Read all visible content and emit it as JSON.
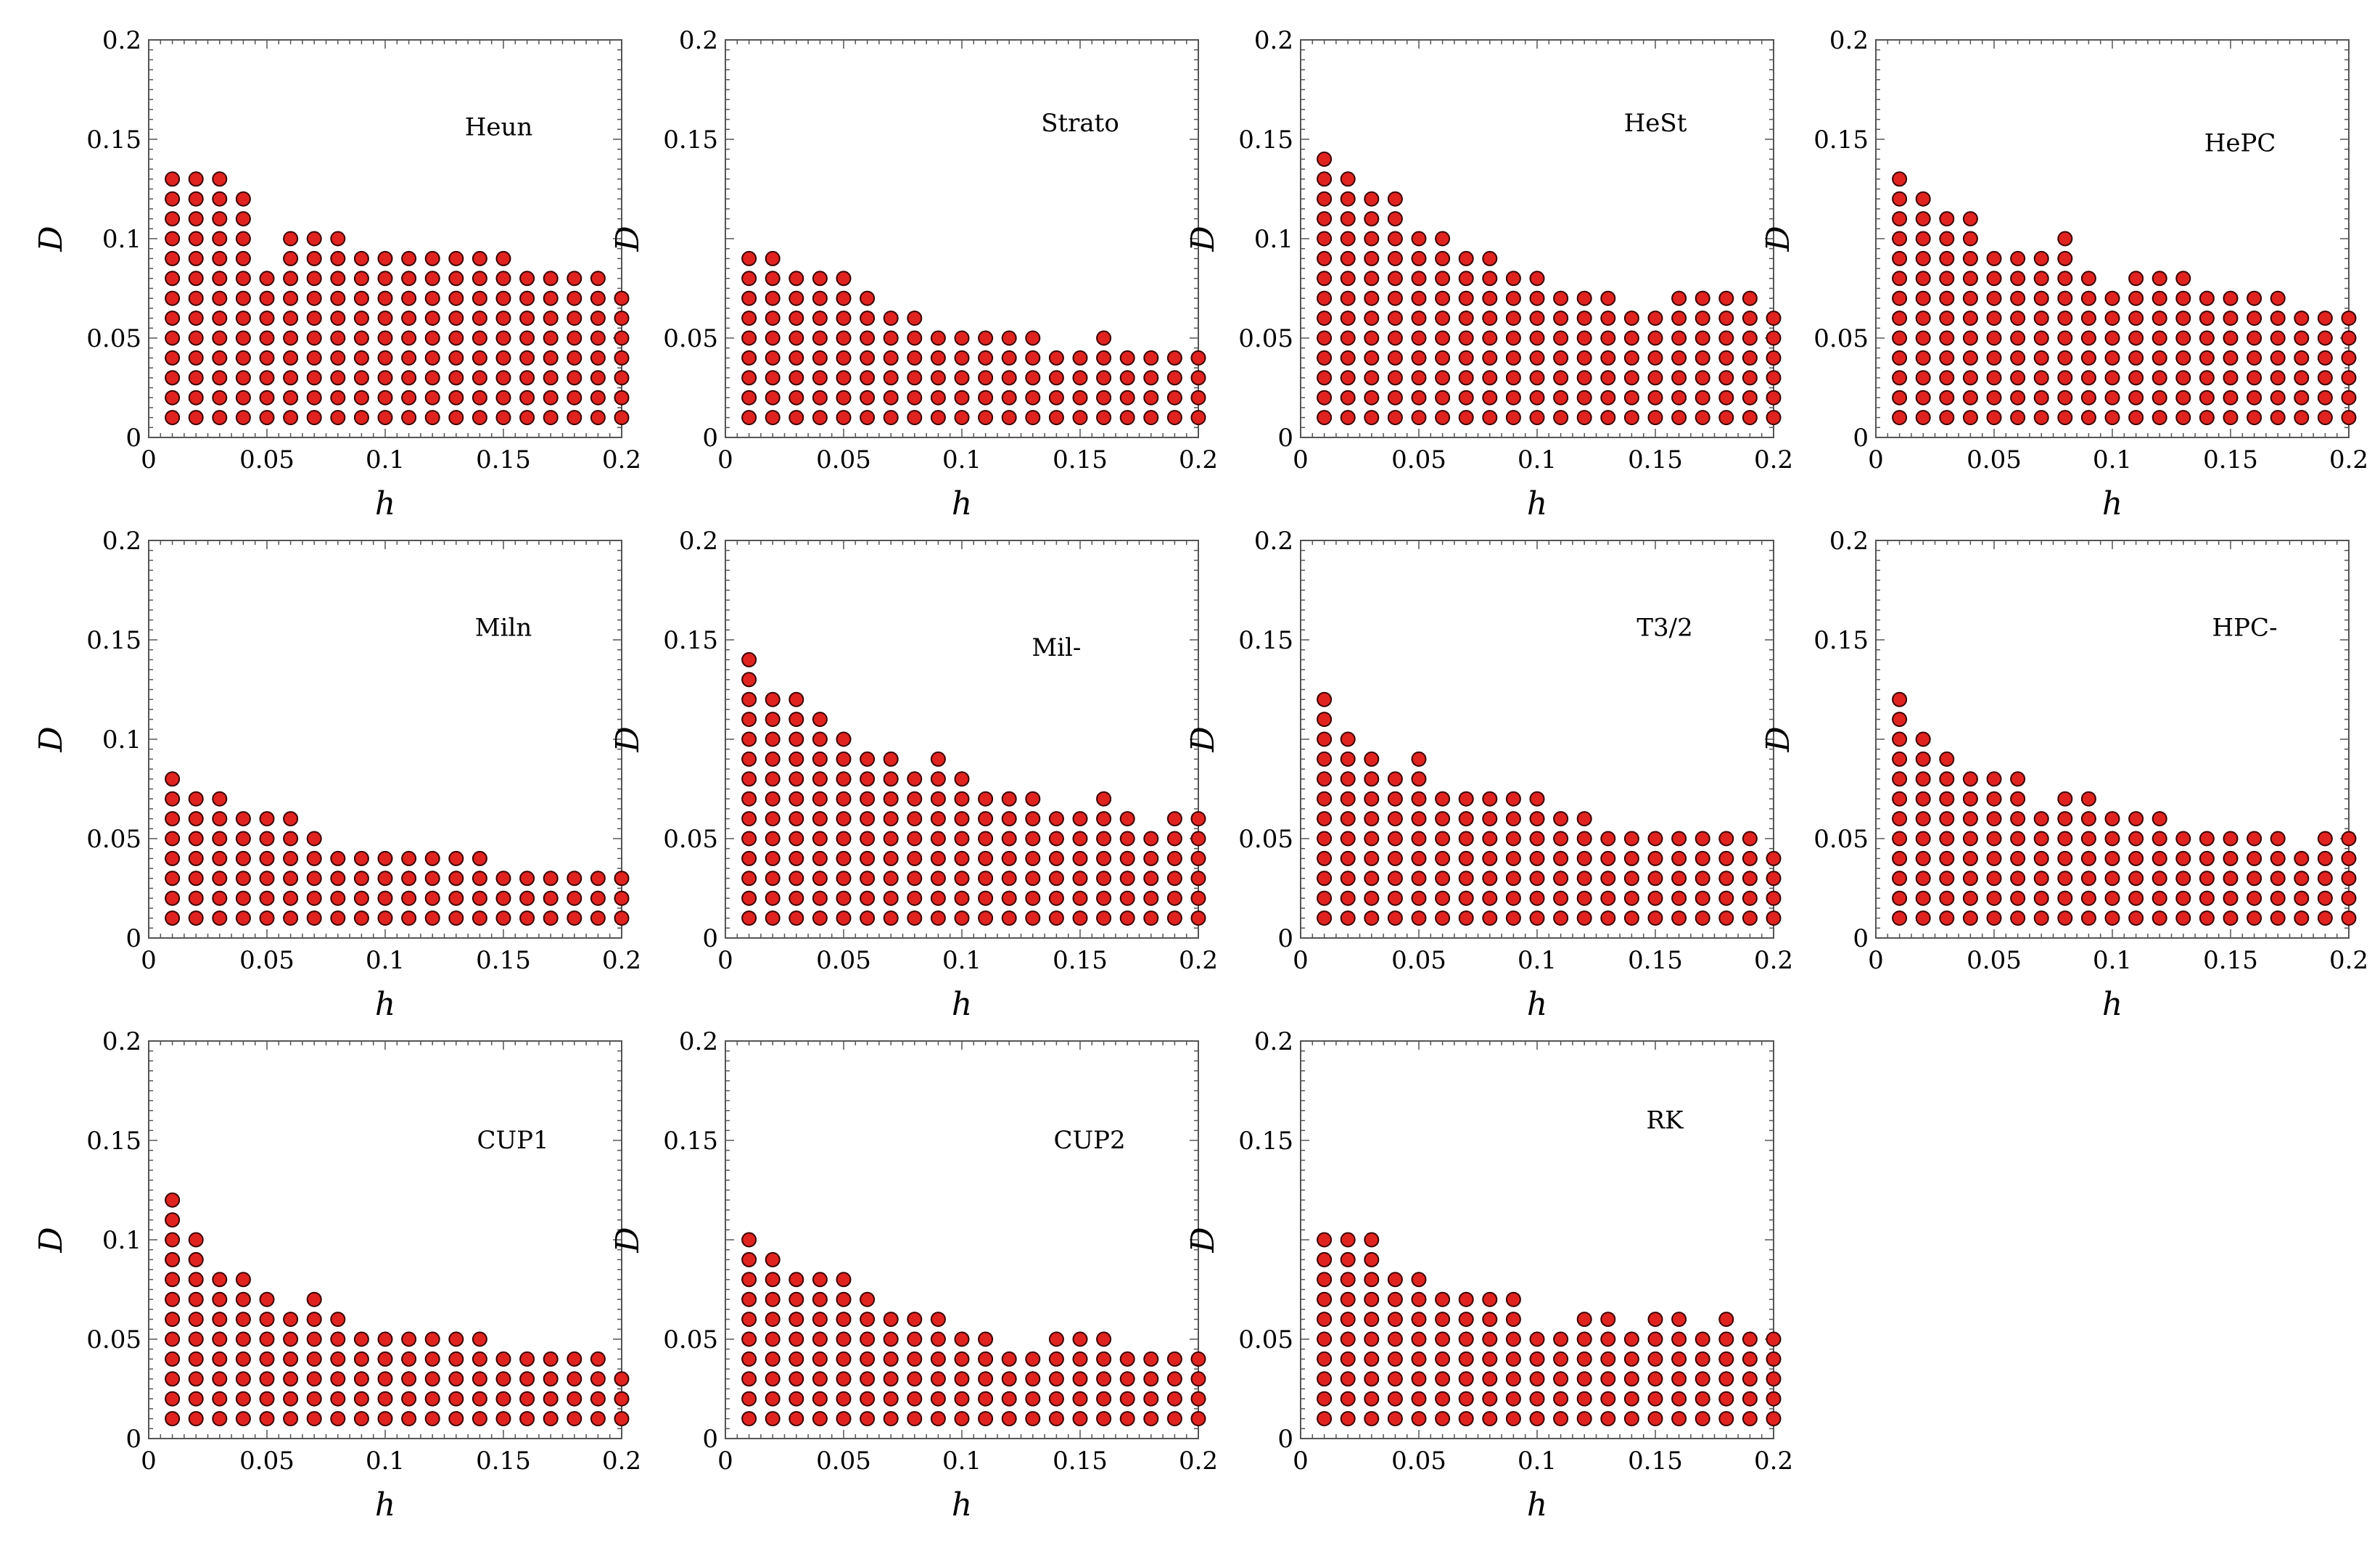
{
  "figure": {
    "style": {
      "marker_fill": "#e0231f",
      "marker_edge": "#3a0000",
      "axis_color": "#555555",
      "background": "#ffffff"
    },
    "xlabel": "h",
    "ylabel": "D",
    "x_ticks": [
      0,
      0.05,
      0.1,
      0.15,
      0.2
    ],
    "x_tick_labels": [
      "0",
      "0.05",
      "0.1",
      "0.15",
      "0.2"
    ],
    "y_ticks_full": [
      0,
      0.05,
      0.1,
      0.15,
      0.2
    ],
    "y_tick_labels_full": [
      "0",
      "0.05",
      "0.1",
      "0.15",
      "0.2"
    ],
    "y_ticks_no01": [
      0,
      0.05,
      0.15,
      0.2
    ],
    "y_tick_labels_no01": [
      "0",
      "0.05",
      "0.15",
      "0.2"
    ]
  },
  "chart_data": [
    {
      "type": "scatter",
      "title": "Heun",
      "xlabel": "h",
      "ylabel": "D",
      "xlim": [
        0,
        0.2
      ],
      "ylim": [
        0,
        0.2
      ],
      "x": [
        0.01,
        0.02,
        0.03,
        0.04,
        0.05,
        0.06,
        0.07,
        0.08,
        0.09,
        0.1,
        0.11,
        0.12,
        0.13,
        0.14,
        0.15,
        0.16,
        0.17,
        0.18,
        0.19,
        0.2
      ],
      "max_D": [
        0.13,
        0.13,
        0.13,
        0.12,
        0.08,
        0.1,
        0.1,
        0.1,
        0.09,
        0.09,
        0.09,
        0.09,
        0.09,
        0.09,
        0.09,
        0.08,
        0.08,
        0.08,
        0.08,
        0.07
      ],
      "D_step": 0.01,
      "y_ticks": [
        0,
        0.05,
        0.1,
        0.15,
        0.2
      ]
    },
    {
      "type": "scatter",
      "title": "Strato",
      "xlabel": "h",
      "ylabel": "D",
      "xlim": [
        0,
        0.2
      ],
      "ylim": [
        0,
        0.2
      ],
      "x": [
        0.01,
        0.02,
        0.03,
        0.04,
        0.05,
        0.06,
        0.07,
        0.08,
        0.09,
        0.1,
        0.11,
        0.12,
        0.13,
        0.14,
        0.15,
        0.16,
        0.17,
        0.18,
        0.19,
        0.2
      ],
      "max_D": [
        0.09,
        0.09,
        0.08,
        0.08,
        0.08,
        0.07,
        0.06,
        0.06,
        0.05,
        0.05,
        0.05,
        0.05,
        0.05,
        0.04,
        0.04,
        0.05,
        0.04,
        0.04,
        0.04,
        0.04
      ],
      "D_step": 0.01,
      "y_ticks": [
        0,
        0.05,
        0.15,
        0.2
      ]
    },
    {
      "type": "scatter",
      "title": "HeSt",
      "xlabel": "h",
      "ylabel": "D",
      "xlim": [
        0,
        0.2
      ],
      "ylim": [
        0,
        0.2
      ],
      "x": [
        0.01,
        0.02,
        0.03,
        0.04,
        0.05,
        0.06,
        0.07,
        0.08,
        0.09,
        0.1,
        0.11,
        0.12,
        0.13,
        0.14,
        0.15,
        0.16,
        0.17,
        0.18,
        0.19,
        0.2
      ],
      "max_D": [
        0.14,
        0.13,
        0.12,
        0.12,
        0.1,
        0.1,
        0.09,
        0.09,
        0.08,
        0.08,
        0.07,
        0.07,
        0.07,
        0.06,
        0.06,
        0.07,
        0.07,
        0.07,
        0.07,
        0.06
      ],
      "D_step": 0.01,
      "y_ticks": [
        0,
        0.05,
        0.1,
        0.15,
        0.2
      ]
    },
    {
      "type": "scatter",
      "title": "HePC",
      "xlabel": "h",
      "ylabel": "D",
      "xlim": [
        0,
        0.2
      ],
      "ylim": [
        0,
        0.2
      ],
      "x": [
        0.01,
        0.02,
        0.03,
        0.04,
        0.05,
        0.06,
        0.07,
        0.08,
        0.09,
        0.1,
        0.11,
        0.12,
        0.13,
        0.14,
        0.15,
        0.16,
        0.17,
        0.18,
        0.19,
        0.2
      ],
      "max_D": [
        0.13,
        0.12,
        0.11,
        0.11,
        0.09,
        0.09,
        0.09,
        0.1,
        0.08,
        0.07,
        0.08,
        0.08,
        0.08,
        0.07,
        0.07,
        0.07,
        0.07,
        0.06,
        0.06,
        0.06
      ],
      "D_step": 0.01,
      "y_ticks": [
        0,
        0.05,
        0.15,
        0.2
      ]
    },
    {
      "type": "scatter",
      "title": "Miln",
      "xlabel": "h",
      "ylabel": "D",
      "xlim": [
        0,
        0.2
      ],
      "ylim": [
        0,
        0.2
      ],
      "x": [
        0.01,
        0.02,
        0.03,
        0.04,
        0.05,
        0.06,
        0.07,
        0.08,
        0.09,
        0.1,
        0.11,
        0.12,
        0.13,
        0.14,
        0.15,
        0.16,
        0.17,
        0.18,
        0.19,
        0.2
      ],
      "max_D": [
        0.08,
        0.07,
        0.07,
        0.06,
        0.06,
        0.06,
        0.05,
        0.04,
        0.04,
        0.04,
        0.04,
        0.04,
        0.04,
        0.04,
        0.03,
        0.03,
        0.03,
        0.03,
        0.03,
        0.03
      ],
      "D_step": 0.01,
      "y_ticks": [
        0,
        0.05,
        0.1,
        0.15,
        0.2
      ]
    },
    {
      "type": "scatter",
      "title": "Mil-",
      "xlabel": "h",
      "ylabel": "D",
      "xlim": [
        0,
        0.2
      ],
      "ylim": [
        0,
        0.2
      ],
      "x": [
        0.01,
        0.02,
        0.03,
        0.04,
        0.05,
        0.06,
        0.07,
        0.08,
        0.09,
        0.1,
        0.11,
        0.12,
        0.13,
        0.14,
        0.15,
        0.16,
        0.17,
        0.18,
        0.19,
        0.2
      ],
      "max_D": [
        0.14,
        0.12,
        0.12,
        0.11,
        0.1,
        0.09,
        0.09,
        0.08,
        0.09,
        0.08,
        0.07,
        0.07,
        0.07,
        0.06,
        0.06,
        0.07,
        0.06,
        0.05,
        0.06,
        0.06
      ],
      "D_step": 0.01,
      "y_ticks": [
        0,
        0.05,
        0.15,
        0.2
      ]
    },
    {
      "type": "scatter",
      "title": "T3/2",
      "xlabel": "h",
      "ylabel": "D",
      "xlim": [
        0,
        0.2
      ],
      "ylim": [
        0,
        0.2
      ],
      "x": [
        0.01,
        0.02,
        0.03,
        0.04,
        0.05,
        0.06,
        0.07,
        0.08,
        0.09,
        0.1,
        0.11,
        0.12,
        0.13,
        0.14,
        0.15,
        0.16,
        0.17,
        0.18,
        0.19,
        0.2
      ],
      "max_D": [
        0.12,
        0.1,
        0.09,
        0.08,
        0.09,
        0.07,
        0.07,
        0.07,
        0.07,
        0.07,
        0.06,
        0.06,
        0.05,
        0.05,
        0.05,
        0.05,
        0.05,
        0.05,
        0.05,
        0.04
      ],
      "D_step": 0.01,
      "y_ticks": [
        0,
        0.05,
        0.15,
        0.2
      ]
    },
    {
      "type": "scatter",
      "title": "HPC-",
      "xlabel": "h",
      "ylabel": "D",
      "xlim": [
        0,
        0.2
      ],
      "ylim": [
        0,
        0.2
      ],
      "x": [
        0.01,
        0.02,
        0.03,
        0.04,
        0.05,
        0.06,
        0.07,
        0.08,
        0.09,
        0.1,
        0.11,
        0.12,
        0.13,
        0.14,
        0.15,
        0.16,
        0.17,
        0.18,
        0.19,
        0.2
      ],
      "max_D": [
        0.12,
        0.1,
        0.09,
        0.08,
        0.08,
        0.08,
        0.06,
        0.07,
        0.07,
        0.06,
        0.06,
        0.06,
        0.05,
        0.05,
        0.05,
        0.05,
        0.05,
        0.04,
        0.05,
        0.05
      ],
      "D_step": 0.01,
      "y_ticks": [
        0,
        0.05,
        0.15,
        0.2
      ]
    },
    {
      "type": "scatter",
      "title": "CUP1",
      "xlabel": "h",
      "ylabel": "D",
      "xlim": [
        0,
        0.2
      ],
      "ylim": [
        0,
        0.2
      ],
      "x": [
        0.01,
        0.02,
        0.03,
        0.04,
        0.05,
        0.06,
        0.07,
        0.08,
        0.09,
        0.1,
        0.11,
        0.12,
        0.13,
        0.14,
        0.15,
        0.16,
        0.17,
        0.18,
        0.19,
        0.2
      ],
      "max_D": [
        0.12,
        0.1,
        0.08,
        0.08,
        0.07,
        0.06,
        0.07,
        0.06,
        0.05,
        0.05,
        0.05,
        0.05,
        0.05,
        0.05,
        0.04,
        0.04,
        0.04,
        0.04,
        0.04,
        0.03
      ],
      "D_step": 0.01,
      "y_ticks": [
        0,
        0.05,
        0.1,
        0.15,
        0.2
      ]
    },
    {
      "type": "scatter",
      "title": "CUP2",
      "xlabel": "h",
      "ylabel": "D",
      "xlim": [
        0,
        0.2
      ],
      "ylim": [
        0,
        0.2
      ],
      "x": [
        0.01,
        0.02,
        0.03,
        0.04,
        0.05,
        0.06,
        0.07,
        0.08,
        0.09,
        0.1,
        0.11,
        0.12,
        0.13,
        0.14,
        0.15,
        0.16,
        0.17,
        0.18,
        0.19,
        0.2
      ],
      "max_D": [
        0.1,
        0.09,
        0.08,
        0.08,
        0.08,
        0.07,
        0.06,
        0.06,
        0.06,
        0.05,
        0.05,
        0.04,
        0.04,
        0.05,
        0.05,
        0.05,
        0.04,
        0.04,
        0.04,
        0.04
      ],
      "D_step": 0.01,
      "y_ticks": [
        0,
        0.05,
        0.15,
        0.2
      ]
    },
    {
      "type": "scatter",
      "title": "RK",
      "xlabel": "h",
      "ylabel": "D",
      "xlim": [
        0,
        0.2
      ],
      "ylim": [
        0,
        0.2
      ],
      "x": [
        0.01,
        0.02,
        0.03,
        0.04,
        0.05,
        0.06,
        0.07,
        0.08,
        0.09,
        0.1,
        0.11,
        0.12,
        0.13,
        0.14,
        0.15,
        0.16,
        0.17,
        0.18,
        0.19,
        0.2
      ],
      "max_D": [
        0.1,
        0.1,
        0.1,
        0.08,
        0.08,
        0.07,
        0.07,
        0.07,
        0.07,
        0.05,
        0.05,
        0.06,
        0.06,
        0.05,
        0.06,
        0.06,
        0.05,
        0.06,
        0.05,
        0.05
      ],
      "D_step": 0.01,
      "y_ticks": [
        0,
        0.05,
        0.15,
        0.2
      ]
    }
  ]
}
